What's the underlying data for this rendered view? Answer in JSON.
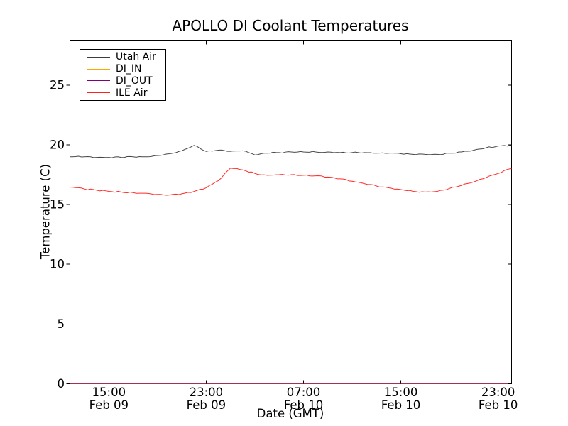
{
  "figure": {
    "title": "APOLLO DI Coolant Temperatures",
    "xlabel": "Date (GMT)",
    "ylabel": "Temperature (C)",
    "background_color": "#ffffff",
    "axis_color": "#000000"
  },
  "chart_data": {
    "type": "line",
    "title": "APOLLO DI Coolant Temperatures",
    "xlabel": "Date (GMT)",
    "ylabel": "Temperature (C)",
    "grid": false,
    "legend_position": "upper left",
    "x_unit": "hours since Feb 09 12:00 GMT",
    "x": [
      0,
      1,
      2,
      3,
      4,
      5,
      6,
      7,
      8,
      9,
      10,
      11,
      12,
      13,
      14,
      15,
      16,
      17,
      18,
      19,
      20,
      21,
      22,
      23,
      24,
      25,
      26,
      27,
      28,
      29,
      30,
      31,
      32,
      33,
      34,
      35,
      36
    ],
    "xlim": [
      -0.2,
      36.1
    ],
    "ylim": [
      0,
      28.7
    ],
    "y_ticks": [
      0,
      5,
      10,
      15,
      20,
      25
    ],
    "x_ticks": [
      {
        "h": 3,
        "time": "15:00",
        "date": "Feb 09"
      },
      {
        "h": 11,
        "time": "23:00",
        "date": "Feb 09"
      },
      {
        "h": 19,
        "time": "07:00",
        "date": "Feb 10"
      },
      {
        "h": 27,
        "time": "15:00",
        "date": "Feb 10"
      },
      {
        "h": 35,
        "time": "23:00",
        "date": "Feb 10"
      }
    ],
    "series": [
      {
        "name": "Utah Air",
        "color": "#3d3d3d",
        "values": [
          19.0,
          19.0,
          18.95,
          18.95,
          18.95,
          19.0,
          19.0,
          19.1,
          19.25,
          19.5,
          19.95,
          19.45,
          19.55,
          19.45,
          19.5,
          19.15,
          19.3,
          19.35,
          19.4,
          19.4,
          19.4,
          19.4,
          19.35,
          19.35,
          19.35,
          19.3,
          19.3,
          19.25,
          19.2,
          19.2,
          19.2,
          19.3,
          19.4,
          19.55,
          19.75,
          19.9,
          19.95
        ]
      },
      {
        "name": "DI_IN",
        "color": "#ffa500",
        "constant": 0.0
      },
      {
        "name": "DI_OUT",
        "color": "#800080",
        "constant": 0.0
      },
      {
        "name": "ILE Air",
        "color": "#ff211b",
        "values": [
          16.45,
          16.3,
          16.2,
          16.1,
          16.05,
          16.0,
          15.95,
          15.85,
          15.8,
          15.9,
          16.1,
          16.4,
          17.0,
          18.05,
          17.9,
          17.6,
          17.45,
          17.5,
          17.5,
          17.45,
          17.4,
          17.3,
          17.15,
          16.95,
          16.75,
          16.55,
          16.4,
          16.25,
          16.1,
          16.05,
          16.1,
          16.35,
          16.6,
          16.9,
          17.25,
          17.6,
          18.0
        ]
      }
    ]
  }
}
